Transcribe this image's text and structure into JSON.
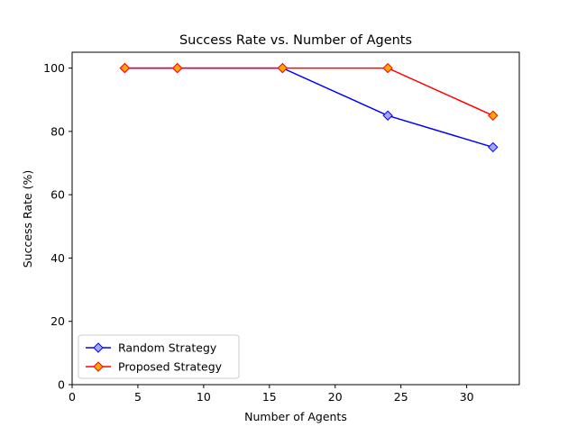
{
  "chart_data": {
    "type": "line",
    "title": "Success Rate vs. Number of Agents",
    "xlabel": "Number of Agents",
    "ylabel": "Success Rate (%)",
    "xlim": [
      0,
      34
    ],
    "ylim": [
      0,
      105
    ],
    "xticks": [
      0,
      5,
      10,
      15,
      20,
      25,
      30
    ],
    "yticks": [
      0,
      20,
      40,
      60,
      80,
      100
    ],
    "grid": false,
    "legend_position": "lower-left",
    "x": [
      4,
      8,
      16,
      24,
      32
    ],
    "series": [
      {
        "name": "Random Strategy",
        "values": [
          100,
          100,
          100,
          85,
          75
        ],
        "line_color": "#0000ff",
        "marker": "diamond",
        "marker_face": "#a0a8f0",
        "marker_edge": "#0000ff"
      },
      {
        "name": "Proposed Strategy",
        "values": [
          100,
          100,
          100,
          100,
          85
        ],
        "line_color": "#ff0000",
        "marker": "diamond",
        "marker_face": "#ffa500",
        "marker_edge": "#ff0000"
      }
    ]
  }
}
